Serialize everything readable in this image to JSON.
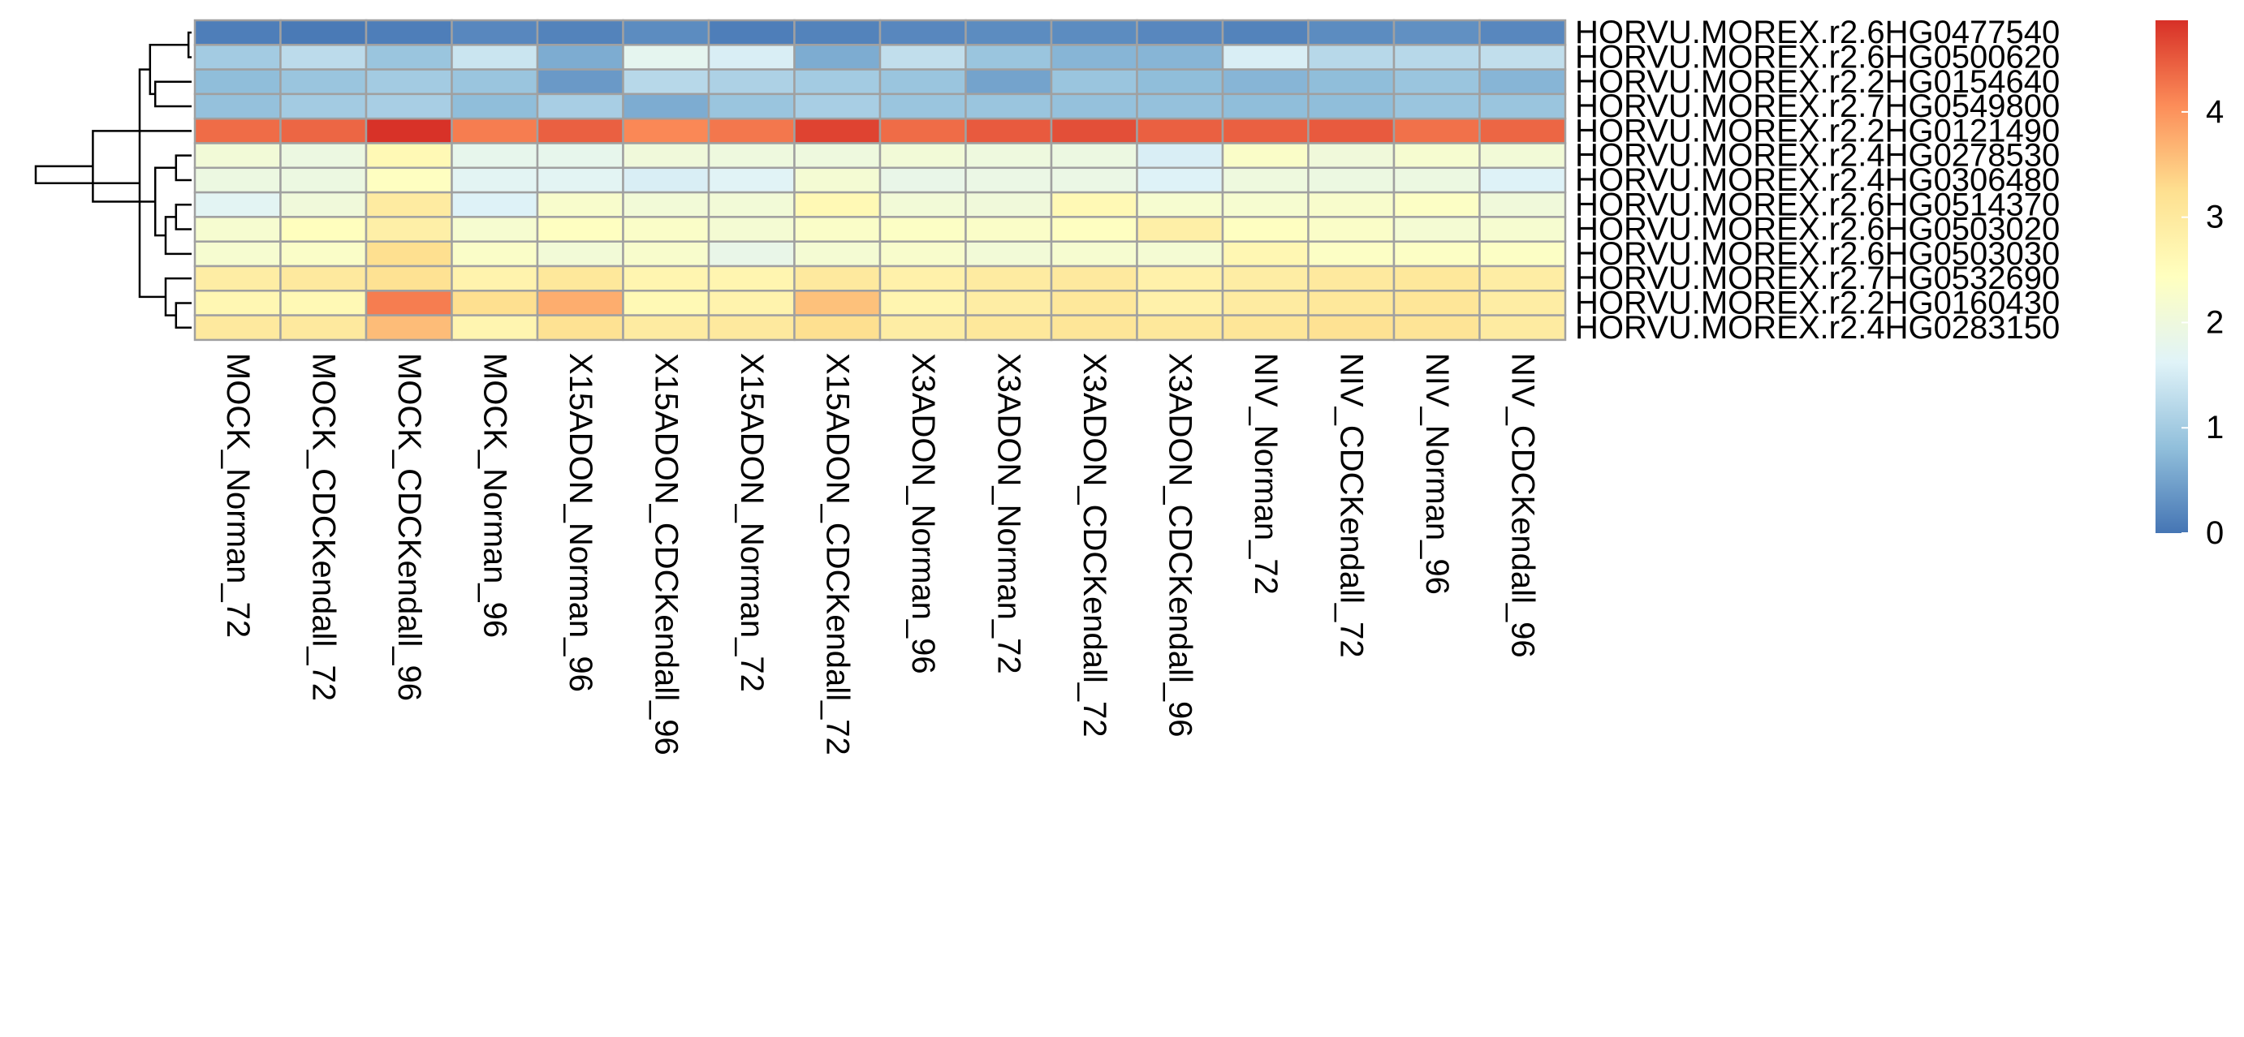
{
  "chart_data": {
    "type": "heatmap",
    "title": "",
    "xlabel": "",
    "ylabel": "",
    "columns": [
      "MOCK_Norman_72",
      "MOCK_CDCKendall_72",
      "MOCK_CDCKendall_96",
      "MOCK_Norman_96",
      "X15ADON_Norman_96",
      "X15ADON_CDCKendall_96",
      "X15ADON_Norman_72",
      "X15ADON_CDCKendall_72",
      "X3ADON_Norman_96",
      "X3ADON_Norman_72",
      "X3ADON_CDCKendall_72",
      "X3ADON_CDCKendall_96",
      "NIV_Norman_72",
      "NIV_CDCKendall_72",
      "NIV_Norman_96",
      "NIV_CDCKendall_96"
    ],
    "rows": [
      "HORVU.MOREX.r2.6HG0477540",
      "HORVU.MOREX.r2.6HG0500620",
      "HORVU.MOREX.r2.2HG0154640",
      "HORVU.MOREX.r2.7HG0549800",
      "HORVU.MOREX.r2.2HG0121490",
      "HORVU.MOREX.r2.4HG0278530",
      "HORVU.MOREX.r2.4HG0306480",
      "HORVU.MOREX.r2.6HG0514370",
      "HORVU.MOREX.r2.6HG0503020",
      "HORVU.MOREX.r2.6HG0503030",
      "HORVU.MOREX.r2.7HG0532690",
      "HORVU.MOREX.r2.2HG0160430",
      "HORVU.MOREX.r2.4HG0283150"
    ],
    "values": [
      [
        0.1,
        0.05,
        0.1,
        0.2,
        0.15,
        0.25,
        0.1,
        0.15,
        0.2,
        0.25,
        0.25,
        0.2,
        0.15,
        0.25,
        0.3,
        0.2
      ],
      [
        1.0,
        1.25,
        0.9,
        1.4,
        0.6,
        1.75,
        1.55,
        0.6,
        1.3,
        0.9,
        0.7,
        0.7,
        1.55,
        1.2,
        1.2,
        1.3
      ],
      [
        0.8,
        0.9,
        1.0,
        0.9,
        0.4,
        1.2,
        1.1,
        1.0,
        0.9,
        0.5,
        0.9,
        0.8,
        0.7,
        0.8,
        0.9,
        0.7
      ],
      [
        0.85,
        1.0,
        1.05,
        0.8,
        1.05,
        0.6,
        0.9,
        1.05,
        0.9,
        0.9,
        0.85,
        0.85,
        0.8,
        0.8,
        0.9,
        0.9
      ],
      [
        4.35,
        4.4,
        4.85,
        4.2,
        4.45,
        4.1,
        4.25,
        4.7,
        4.35,
        4.5,
        4.6,
        4.45,
        4.45,
        4.5,
        4.3,
        4.4
      ],
      [
        2.1,
        1.95,
        2.6,
        1.8,
        1.8,
        2.05,
        2.0,
        2.0,
        2.1,
        2.0,
        1.95,
        1.55,
        2.3,
        2.05,
        2.2,
        2.1
      ],
      [
        1.95,
        1.95,
        2.4,
        1.7,
        1.7,
        1.55,
        1.65,
        2.15,
        1.85,
        1.9,
        1.9,
        1.6,
        2.0,
        1.95,
        1.95,
        1.6
      ],
      [
        1.7,
        2.05,
        2.95,
        1.6,
        2.25,
        2.1,
        2.1,
        2.6,
        2.1,
        2.05,
        2.6,
        2.2,
        2.2,
        2.25,
        2.35,
        2.05
      ],
      [
        2.2,
        2.45,
        2.85,
        2.2,
        2.4,
        2.3,
        2.15,
        2.3,
        2.35,
        2.3,
        2.4,
        2.85,
        2.4,
        2.3,
        2.15,
        2.2
      ],
      [
        2.2,
        2.3,
        3.25,
        2.3,
        2.1,
        2.25,
        1.85,
        2.15,
        2.25,
        2.1,
        2.2,
        2.15,
        2.65,
        2.35,
        2.35,
        2.35
      ],
      [
        2.9,
        3.0,
        3.2,
        2.75,
        3.05,
        2.7,
        2.7,
        3.0,
        2.8,
        2.95,
        3.0,
        2.8,
        2.9,
        3.0,
        3.05,
        2.9
      ],
      [
        2.65,
        2.6,
        4.2,
        3.25,
        3.75,
        2.6,
        2.75,
        3.55,
        2.7,
        2.9,
        3.05,
        2.8,
        2.95,
        3.05,
        3.1,
        2.9
      ],
      [
        3.0,
        3.0,
        3.6,
        2.7,
        3.2,
        2.95,
        3.0,
        3.25,
        2.9,
        3.05,
        3.1,
        3.05,
        3.1,
        3.2,
        3.15,
        2.95
      ]
    ],
    "color_scale": {
      "min": 0,
      "max": 4.87,
      "colors": [
        "#4575B4",
        "#91BFDB",
        "#E0F3F8",
        "#FFFFBF",
        "#FEE090",
        "#FC8D59",
        "#D73027"
      ],
      "ticks": [
        0,
        1,
        2,
        3,
        4
      ]
    },
    "cell_border_color": "#A0A0A0",
    "row_dendrogram": [
      [
        0,
        1,
        0.03
      ],
      [
        1,
        2,
        0.4
      ],
      [
        1,
        3,
        0.7
      ],
      [
        2,
        3,
        0.35
      ],
      [
        1,
        12,
        0.5
      ],
      [
        7,
        8,
        0.15
      ],
      [
        7,
        9,
        0.25
      ],
      [
        5,
        6,
        0.15
      ],
      [
        5,
        9,
        0.35
      ],
      [
        5,
        4,
        0.95
      ],
      [
        10,
        12,
        0.25
      ],
      [
        11,
        12,
        0.15
      ],
      [
        5,
        12,
        1.5
      ]
    ]
  }
}
